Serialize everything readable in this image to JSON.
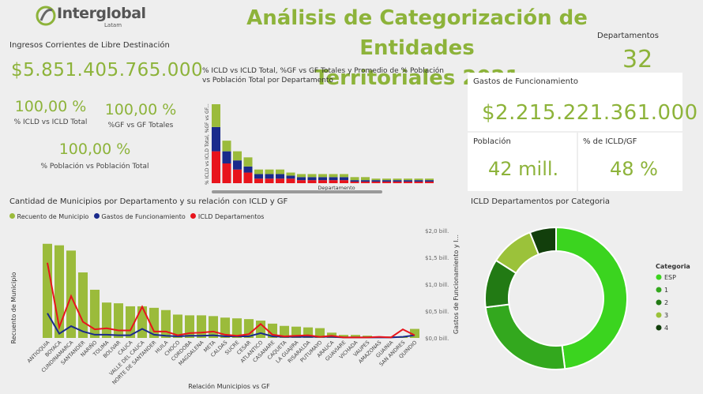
{
  "logo": {
    "name": "Interglobal",
    "tagline": "Latam"
  },
  "title": {
    "line1": "Análisis de Categorización de Entidades",
    "line2": "Territoriales 2021"
  },
  "kpis": {
    "ingresos_label": "Ingresos Corrientes de Libre Destinación",
    "ingresos_value": "$5.851.405.765.000",
    "icld_pct": "100,00 %",
    "icld_pct_label": "% ICLD vs ICLD Total",
    "gf_pct": "100,00 %",
    "gf_pct_label": "%GF vs GF Totales",
    "pob_pct": "100,00 %",
    "pob_pct_label": "% Población vs Población Total",
    "departamentos_label": "Departamentos",
    "departamentos_value": "32",
    "gastos_label": "Gastos de Funcionamiento",
    "gastos_value": "$2.215.221.361.000",
    "poblacion_label": "Población",
    "poblacion_value": "42 mill.",
    "icld_gf_label": "% de ICLD/GF",
    "icld_gf_value": "48 %"
  },
  "colors": {
    "olive": "#9bbb3b",
    "navy": "#1a2a8c",
    "red": "#e8141c",
    "bright": "#3bd41f",
    "mid": "#33a81e",
    "dark": "#227a14",
    "light": "#9bc23a",
    "darkest": "#123f0c"
  },
  "chart_data": [
    {
      "type": "bar",
      "title": "% ICLD vs ICLD Total, %GF vs GF Totales y Promedio de % Población vs Población Total por Departamento",
      "xlabel": "Departamento",
      "ylabel": "% ICLD vs ICLD Total, %GF vs GF...",
      "stacked": true,
      "series": [
        {
          "name": "% ICLD vs ICLD Total",
          "values": [
            21,
            13,
            9,
            7,
            3,
            3,
            3,
            3,
            2,
            2,
            2,
            2,
            2,
            1,
            1,
            1,
            1,
            1,
            1,
            1,
            1
          ]
        },
        {
          "name": "%GF vs GF Totales",
          "values": [
            16,
            8,
            6,
            4,
            3,
            3,
            3,
            2,
            2,
            2,
            2,
            2,
            2,
            1,
            1,
            1,
            1,
            1,
            1,
            1,
            1
          ]
        },
        {
          "name": "Promedio de % Población vs Población Total",
          "values": [
            15,
            7,
            6,
            6,
            3,
            3,
            3,
            2,
            2,
            2,
            2,
            2,
            2,
            2,
            2,
            1,
            1,
            1,
            1,
            1,
            1
          ]
        }
      ]
    },
    {
      "type": "bar",
      "title": "Cantidad de Municipios por Departamento y su relación con ICLD y GF",
      "xlabel": "Relación Municipios vs GF",
      "ylabel": "Recuento de Municipio",
      "y2label": "Gastos de Funcionamiento y I...",
      "y2ticks": [
        "$2,0 bill.",
        "$1,5 bill.",
        "$1,0 bill.",
        "$0,5 bill.",
        "$0,0 bill."
      ],
      "legend": [
        "Recuento de Municipio",
        "Gastos de Funcionamiento",
        "ICLD Departamentos"
      ],
      "categories": [
        "ANTIOQUIA",
        "BOYACA",
        "CUNDINAMARCA",
        "SANTANDER",
        "NARIÑO",
        "TOLIMA",
        "BOLIVAR",
        "CAUCA",
        "VALLE DEL CAUCA",
        "NORTE DE SANTANDER",
        "HUILA",
        "CHOCO",
        "CORDOBA",
        "MAGDALENA",
        "META",
        "CALDAS",
        "SUCRE",
        "CESAR",
        "ATLANTICO",
        "CASANARE",
        "CAQUETA",
        "LA GUAJIRA",
        "RISARALDA",
        "PUTUMAYO",
        "ARAUCA",
        "GUAVIARE",
        "VICHADA",
        "VAUPES",
        "AMAZONAS",
        "GUAINIA",
        "SAN ANDRES",
        "QUINDIO"
      ],
      "values": [
        125,
        123,
        116,
        87,
        64,
        47,
        46,
        42,
        42,
        40,
        37,
        31,
        30,
        30,
        29,
        27,
        26,
        25,
        23,
        19,
        16,
        15,
        14,
        13,
        7,
        4,
        4,
        3,
        2,
        2,
        2,
        12
      ],
      "ylim": [
        0,
        130
      ],
      "gastos_bill": [
        0.46,
        0.08,
        0.22,
        0.12,
        0.06,
        0.06,
        0.05,
        0.05,
        0.17,
        0.06,
        0.04,
        0.03,
        0.04,
        0.04,
        0.05,
        0.03,
        0.03,
        0.03,
        0.09,
        0.03,
        0.02,
        0.02,
        0.02,
        0.02,
        0.02,
        0.01,
        0.01,
        0.01,
        0.01,
        0.01,
        0.02,
        0.05
      ],
      "icld_bill": [
        1.4,
        0.2,
        0.78,
        0.3,
        0.16,
        0.18,
        0.14,
        0.14,
        0.58,
        0.12,
        0.12,
        0.05,
        0.09,
        0.1,
        0.12,
        0.06,
        0.04,
        0.07,
        0.26,
        0.06,
        0.03,
        0.04,
        0.05,
        0.02,
        0.04,
        0.01,
        0.01,
        0.01,
        0.02,
        0.01,
        0.16,
        0.05
      ],
      "y2lim": [
        0,
        2.0
      ]
    },
    {
      "type": "pie",
      "title": "ICLD Departamentos por Categoria",
      "legend_title": "Categoria",
      "labels": [
        "ESP",
        "1",
        "2",
        "3",
        "4"
      ],
      "values": [
        48,
        25,
        11,
        10,
        6
      ]
    }
  ]
}
